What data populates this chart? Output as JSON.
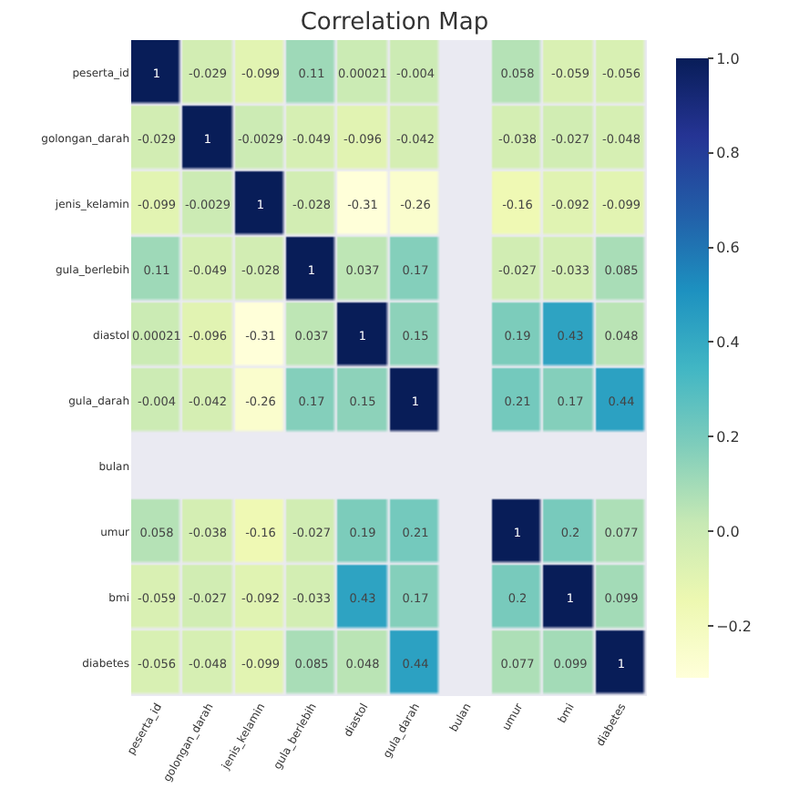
{
  "chart_data": {
    "type": "heatmap",
    "title": "Correlation Map",
    "categories": [
      "peserta_id",
      "golongan_darah",
      "jenis_kelamin",
      "gula_berlebih",
      "diastol",
      "gula_darah",
      "bulan",
      "umur",
      "bmi",
      "diabetes"
    ],
    "y_categories": [
      "peserta_id",
      "golongan_darah",
      "jenis_kelamin",
      "gula_berlebih",
      "diastol",
      "gula_darah",
      "bulan",
      "umur",
      "bmi",
      "diabetes"
    ],
    "cells": [
      [
        1,
        -0.029,
        -0.099,
        0.11,
        0.00021,
        -0.004,
        null,
        0.058,
        -0.059,
        -0.056
      ],
      [
        -0.029,
        1,
        -0.0029,
        -0.049,
        -0.096,
        -0.042,
        null,
        -0.038,
        -0.027,
        -0.048
      ],
      [
        -0.099,
        -0.0029,
        1,
        -0.028,
        -0.31,
        -0.26,
        null,
        -0.16,
        -0.092,
        -0.099
      ],
      [
        0.11,
        -0.049,
        -0.028,
        1,
        0.037,
        0.17,
        null,
        -0.027,
        -0.033,
        0.085
      ],
      [
        0.00021,
        -0.096,
        -0.31,
        0.037,
        1,
        0.15,
        null,
        0.19,
        0.43,
        0.048
      ],
      [
        -0.004,
        -0.042,
        -0.26,
        0.17,
        0.15,
        1,
        null,
        0.21,
        0.17,
        0.44
      ],
      [
        null,
        null,
        null,
        null,
        null,
        null,
        null,
        null,
        null,
        null
      ],
      [
        0.058,
        -0.038,
        -0.16,
        -0.027,
        0.19,
        0.21,
        null,
        1,
        0.2,
        0.077
      ],
      [
        -0.059,
        -0.027,
        -0.092,
        -0.033,
        0.43,
        0.17,
        null,
        0.2,
        1,
        0.099
      ],
      [
        -0.056,
        -0.048,
        -0.099,
        0.085,
        0.048,
        0.44,
        null,
        0.077,
        0.099,
        1
      ]
    ],
    "data_labels": true,
    "clim": [
      -0.31,
      1
    ],
    "cticks": [
      {
        "value": -0.2,
        "label": "−0.2"
      },
      {
        "value": 0,
        "label": "0.0"
      },
      {
        "value": 0.2,
        "label": "0.2"
      },
      {
        "value": 0.4,
        "label": "0.4"
      },
      {
        "value": 0.6,
        "label": "0.6"
      },
      {
        "value": 0.8,
        "label": "0.8"
      },
      {
        "value": 1,
        "label": "1.0"
      }
    ]
  }
}
